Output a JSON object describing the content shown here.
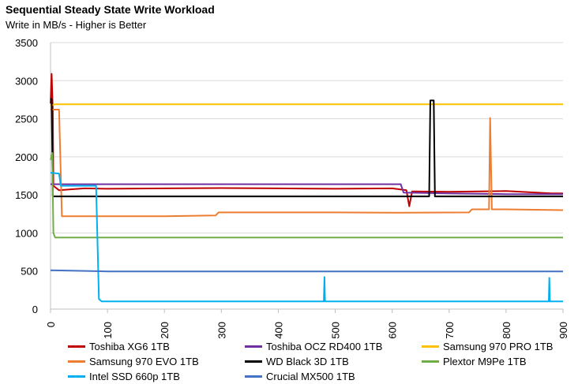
{
  "title": "Sequential Steady State Write Workload",
  "subtitle": "Write in MB/s - Higher is Better",
  "chart_data": {
    "type": "line",
    "title": "Sequential Steady State Write Workload",
    "subtitle": "Write in MB/s - Higher is Better",
    "xlabel": "",
    "ylabel": "",
    "xlim": [
      0,
      900
    ],
    "ylim": [
      0,
      3500
    ],
    "xticks": [
      0,
      100,
      200,
      300,
      400,
      500,
      600,
      700,
      800,
      900
    ],
    "yticks": [
      0,
      500,
      1000,
      1500,
      2000,
      2500,
      3000,
      3500
    ],
    "grid": "horizontal",
    "legend_position": "bottom",
    "series": [
      {
        "name": "Toshiba XG6 1TB",
        "color": "#c00000",
        "points": [
          [
            0,
            2700
          ],
          [
            2,
            3090
          ],
          [
            4,
            2600
          ],
          [
            5,
            1620
          ],
          [
            15,
            1560
          ],
          [
            40,
            1575
          ],
          [
            60,
            1585
          ],
          [
            100,
            1580
          ],
          [
            200,
            1585
          ],
          [
            300,
            1590
          ],
          [
            400,
            1585
          ],
          [
            500,
            1580
          ],
          [
            600,
            1585
          ],
          [
            625,
            1560
          ],
          [
            630,
            1350
          ],
          [
            635,
            1545
          ],
          [
            700,
            1540
          ],
          [
            800,
            1550
          ],
          [
            880,
            1520
          ],
          [
            900,
            1520
          ]
        ]
      },
      {
        "name": "Toshiba OCZ RD400 1TB",
        "color": "#7030a0",
        "points": [
          [
            0,
            1640
          ],
          [
            100,
            1640
          ],
          [
            200,
            1640
          ],
          [
            300,
            1640
          ],
          [
            400,
            1640
          ],
          [
            500,
            1640
          ],
          [
            615,
            1640
          ],
          [
            620,
            1530
          ],
          [
            700,
            1520
          ],
          [
            800,
            1510
          ],
          [
            900,
            1510
          ]
        ]
      },
      {
        "name": "Samsung 970 PRO 1TB",
        "color": "#ffc000",
        "points": [
          [
            0,
            2670
          ],
          [
            8,
            2690
          ],
          [
            100,
            2690
          ],
          [
            300,
            2690
          ],
          [
            500,
            2690
          ],
          [
            700,
            2690
          ],
          [
            900,
            2690
          ]
        ]
      },
      {
        "name": "Samsung 970 EVO 1TB",
        "color": "#ed7d31",
        "points": [
          [
            0,
            2620
          ],
          [
            15,
            2620
          ],
          [
            20,
            1220
          ],
          [
            100,
            1220
          ],
          [
            200,
            1220
          ],
          [
            290,
            1230
          ],
          [
            295,
            1270
          ],
          [
            400,
            1270
          ],
          [
            500,
            1270
          ],
          [
            600,
            1265
          ],
          [
            735,
            1270
          ],
          [
            740,
            1310
          ],
          [
            770,
            1310
          ],
          [
            772,
            2510
          ],
          [
            775,
            1310
          ],
          [
            800,
            1310
          ],
          [
            900,
            1300
          ]
        ]
      },
      {
        "name": "WD Black 3D 1TB",
        "color": "#000000",
        "points": [
          [
            0,
            2760
          ],
          [
            2,
            2760
          ],
          [
            4,
            1480
          ],
          [
            100,
            1480
          ],
          [
            300,
            1480
          ],
          [
            500,
            1480
          ],
          [
            665,
            1480
          ],
          [
            667,
            2740
          ],
          [
            673,
            2740
          ],
          [
            675,
            1480
          ],
          [
            800,
            1480
          ],
          [
            900,
            1480
          ]
        ]
      },
      {
        "name": "Plextor M9Pe 1TB",
        "color": "#70ad47",
        "points": [
          [
            0,
            1960
          ],
          [
            3,
            2050
          ],
          [
            5,
            1000
          ],
          [
            8,
            940
          ],
          [
            100,
            940
          ],
          [
            300,
            940
          ],
          [
            500,
            940
          ],
          [
            700,
            940
          ],
          [
            900,
            940
          ]
        ]
      },
      {
        "name": "Intel SSD 660p 1TB",
        "color": "#00b0f0",
        "points": [
          [
            0,
            1790
          ],
          [
            15,
            1780
          ],
          [
            18,
            1620
          ],
          [
            80,
            1620
          ],
          [
            85,
            130
          ],
          [
            90,
            100
          ],
          [
            200,
            100
          ],
          [
            300,
            100
          ],
          [
            400,
            100
          ],
          [
            480,
            100
          ],
          [
            481,
            420
          ],
          [
            482,
            100
          ],
          [
            600,
            100
          ],
          [
            875,
            100
          ],
          [
            876,
            410
          ],
          [
            877,
            100
          ],
          [
            900,
            100
          ]
        ]
      },
      {
        "name": "Crucial MX500 1TB",
        "color": "#4472c4",
        "points": [
          [
            0,
            510
          ],
          [
            100,
            495
          ],
          [
            200,
            495
          ],
          [
            300,
            495
          ],
          [
            400,
            495
          ],
          [
            500,
            495
          ],
          [
            600,
            495
          ],
          [
            700,
            495
          ],
          [
            800,
            495
          ],
          [
            900,
            495
          ]
        ]
      }
    ]
  }
}
